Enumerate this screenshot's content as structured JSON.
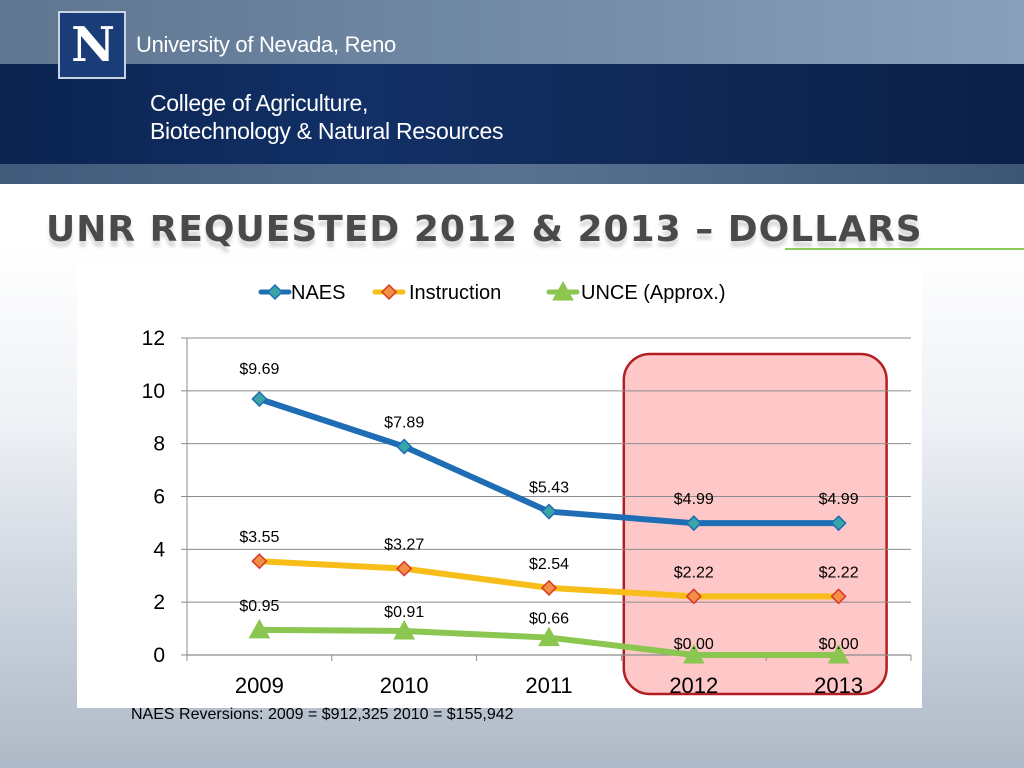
{
  "header": {
    "logo_letter": "N",
    "university": "University of Nevada, Reno",
    "college_line1": "College of Agriculture,",
    "college_line2": "Biotechnology & Natural Resources"
  },
  "slide": {
    "title": "UNR REQUESTED 2012 & 2013 – DOLLARS",
    "footnote": "NAES Reversions: 2009 = $912,325  2010 = $155,942"
  },
  "colors": {
    "naes": "#1f6db4",
    "naes_marker": "#3aa5a6",
    "instruction": "#f7bd19",
    "instruction_marker": "#f28f45",
    "instruction_marker_stroke": "#d9352a",
    "unce": "#8ac650",
    "highlight_fill": "#ffc8c8",
    "highlight_stroke": "#b11e24"
  },
  "chart_data": {
    "type": "line",
    "categories": [
      "2009",
      "2010",
      "2011",
      "2012",
      "2013"
    ],
    "ylim": [
      0,
      12
    ],
    "yticks": [
      0,
      2,
      4,
      6,
      8,
      10,
      12
    ],
    "grid": true,
    "legend_position": "top",
    "highlight_categories": [
      "2012",
      "2013"
    ],
    "series": [
      {
        "name": "NAES",
        "marker": "diamond",
        "values": [
          9.69,
          7.89,
          5.43,
          4.99,
          4.99
        ],
        "labels": [
          "$9.69",
          "$7.89",
          "$5.43",
          "$4.99",
          "$4.99"
        ]
      },
      {
        "name": "Instruction",
        "marker": "diamond",
        "values": [
          3.55,
          3.27,
          2.54,
          2.22,
          2.22
        ],
        "labels": [
          "$3.55",
          "$3.27",
          "$2.54",
          "$2.22",
          "$2.22"
        ]
      },
      {
        "name": "UNCE (Approx.)",
        "marker": "triangle",
        "values": [
          0.95,
          0.91,
          0.66,
          0.0,
          0.0
        ],
        "labels": [
          "$0.95",
          "$0.91",
          "$0.66",
          "$0.00",
          "$0.00"
        ]
      }
    ]
  }
}
